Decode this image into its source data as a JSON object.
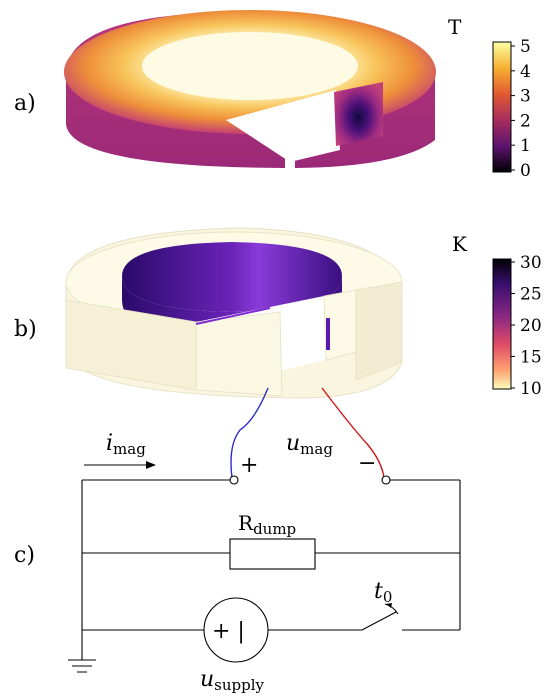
{
  "panels": [
    "a)",
    "b)",
    "c)"
  ],
  "colorbar_a": {
    "unit": "T",
    "ticks": [
      "5",
      "4",
      "3",
      "2",
      "1",
      "0"
    ],
    "colormap": [
      "#fcffa4",
      "#f6b031",
      "#e35932",
      "#a72d5e",
      "#5c136e",
      "#000004"
    ]
  },
  "colorbar_b": {
    "unit": "K",
    "ticks": [
      "30",
      "25",
      "20",
      "15",
      "10"
    ],
    "colormap": [
      "#000004",
      "#3b0f70",
      "#8c2981",
      "#de4968",
      "#fe9f6d",
      "#fcfdbf"
    ]
  },
  "circuit": {
    "current_symbol": "i",
    "current_sub": "mag",
    "voltage_symbol": "u",
    "voltage_sub": "mag",
    "plus": "+",
    "minus": "−",
    "resistor_symbol": "R",
    "resistor_sub": "dump",
    "switch_symbol": "t",
    "switch_sub": "0",
    "source_label": "+ |",
    "supply_symbol": "u",
    "supply_sub": "supply"
  }
}
